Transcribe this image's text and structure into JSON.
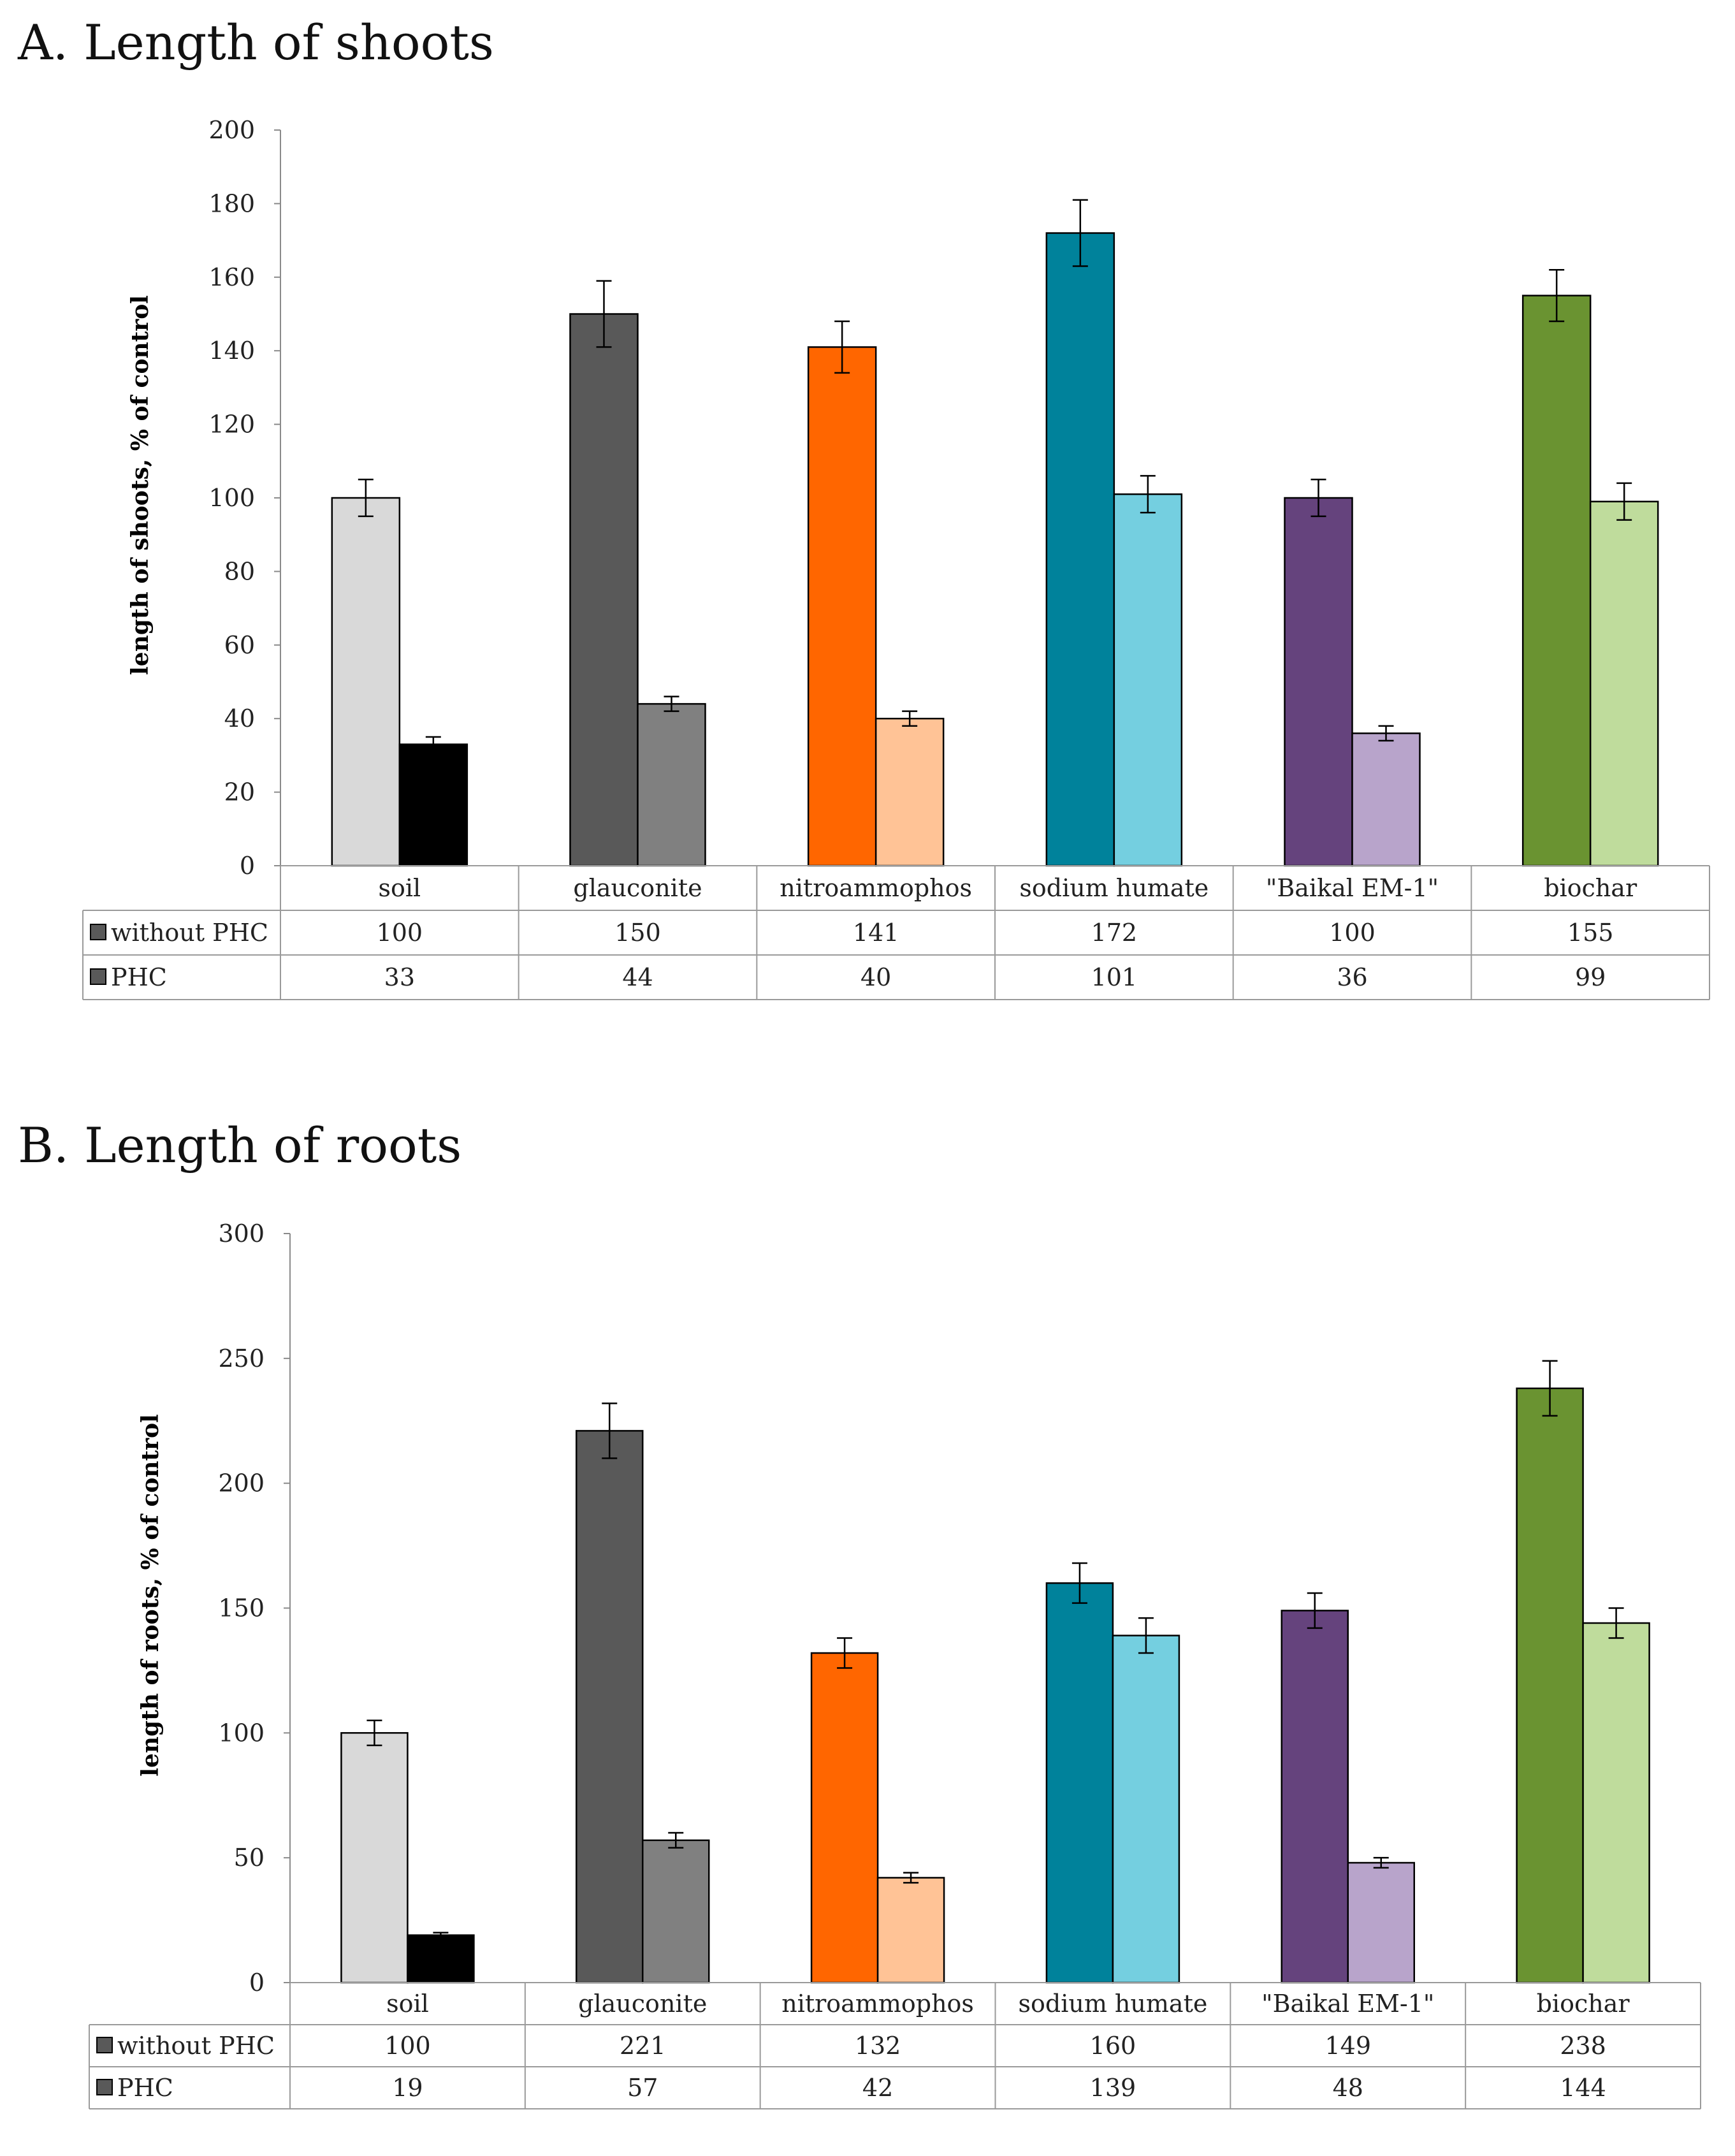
{
  "colors": {
    "without": [
      "#d9d9d9",
      "#595959",
      "#ff6600",
      "#00829b",
      "#65437d",
      "#6a9331"
    ],
    "phc": [
      "#000000",
      "#808080",
      "#ffc396",
      "#74cfe0",
      "#b8a4cb",
      "#bfdc9c"
    ],
    "legend_key": "#595959"
  },
  "chart_data": [
    {
      "type": "bar",
      "title": "A. Length of shoots",
      "ylabel": "length of shoots, % of control",
      "xlabel": "",
      "categories": [
        "soil",
        "glauconite",
        "nitroammophos",
        "sodium humate",
        "\"Baikal EM-1\"",
        "biochar"
      ],
      "ylim": [
        0,
        200
      ],
      "yticks": [
        "0",
        "20",
        "40",
        "60",
        "80",
        "100",
        "120",
        "140",
        "160",
        "180",
        "200"
      ],
      "series": [
        {
          "name": "without PHC",
          "values": [
            100,
            150,
            141,
            172,
            100,
            155
          ],
          "errors": [
            5,
            9,
            7,
            9,
            5,
            7
          ]
        },
        {
          "name": "PHC",
          "values": [
            33,
            44,
            40,
            101,
            36,
            99
          ],
          "errors": [
            2,
            2,
            2,
            5,
            2,
            5
          ]
        }
      ],
      "table": {
        "rows": [
          [
            "100",
            "150",
            "141",
            "172",
            "100",
            "155"
          ],
          [
            "33",
            "44",
            "40",
            "101",
            "36",
            "99"
          ]
        ]
      },
      "grid": false,
      "legend": "data table"
    },
    {
      "type": "bar",
      "title": "B. Length of roots",
      "ylabel": "length of roots, % of control",
      "xlabel": "",
      "categories": [
        "soil",
        "glauconite",
        "nitroammophos",
        "sodium humate",
        "\"Baikal EM-1\"",
        "biochar"
      ],
      "ylim": [
        0,
        300
      ],
      "yticks": [
        "0",
        "50",
        "100",
        "150",
        "200",
        "250",
        "300"
      ],
      "series": [
        {
          "name": "without PHC",
          "values": [
            100,
            221,
            132,
            160,
            149,
            238
          ],
          "errors": [
            5,
            11,
            6,
            8,
            7,
            11
          ]
        },
        {
          "name": "PHC",
          "values": [
            19,
            57,
            42,
            139,
            48,
            144
          ],
          "errors": [
            1,
            3,
            2,
            7,
            2,
            6
          ]
        }
      ],
      "table": {
        "rows": [
          [
            "100",
            "221",
            "132",
            "160",
            "149",
            "238"
          ],
          [
            "19",
            "57",
            "42",
            "139",
            "48",
            "144"
          ]
        ]
      },
      "grid": false,
      "legend": "data table"
    }
  ]
}
